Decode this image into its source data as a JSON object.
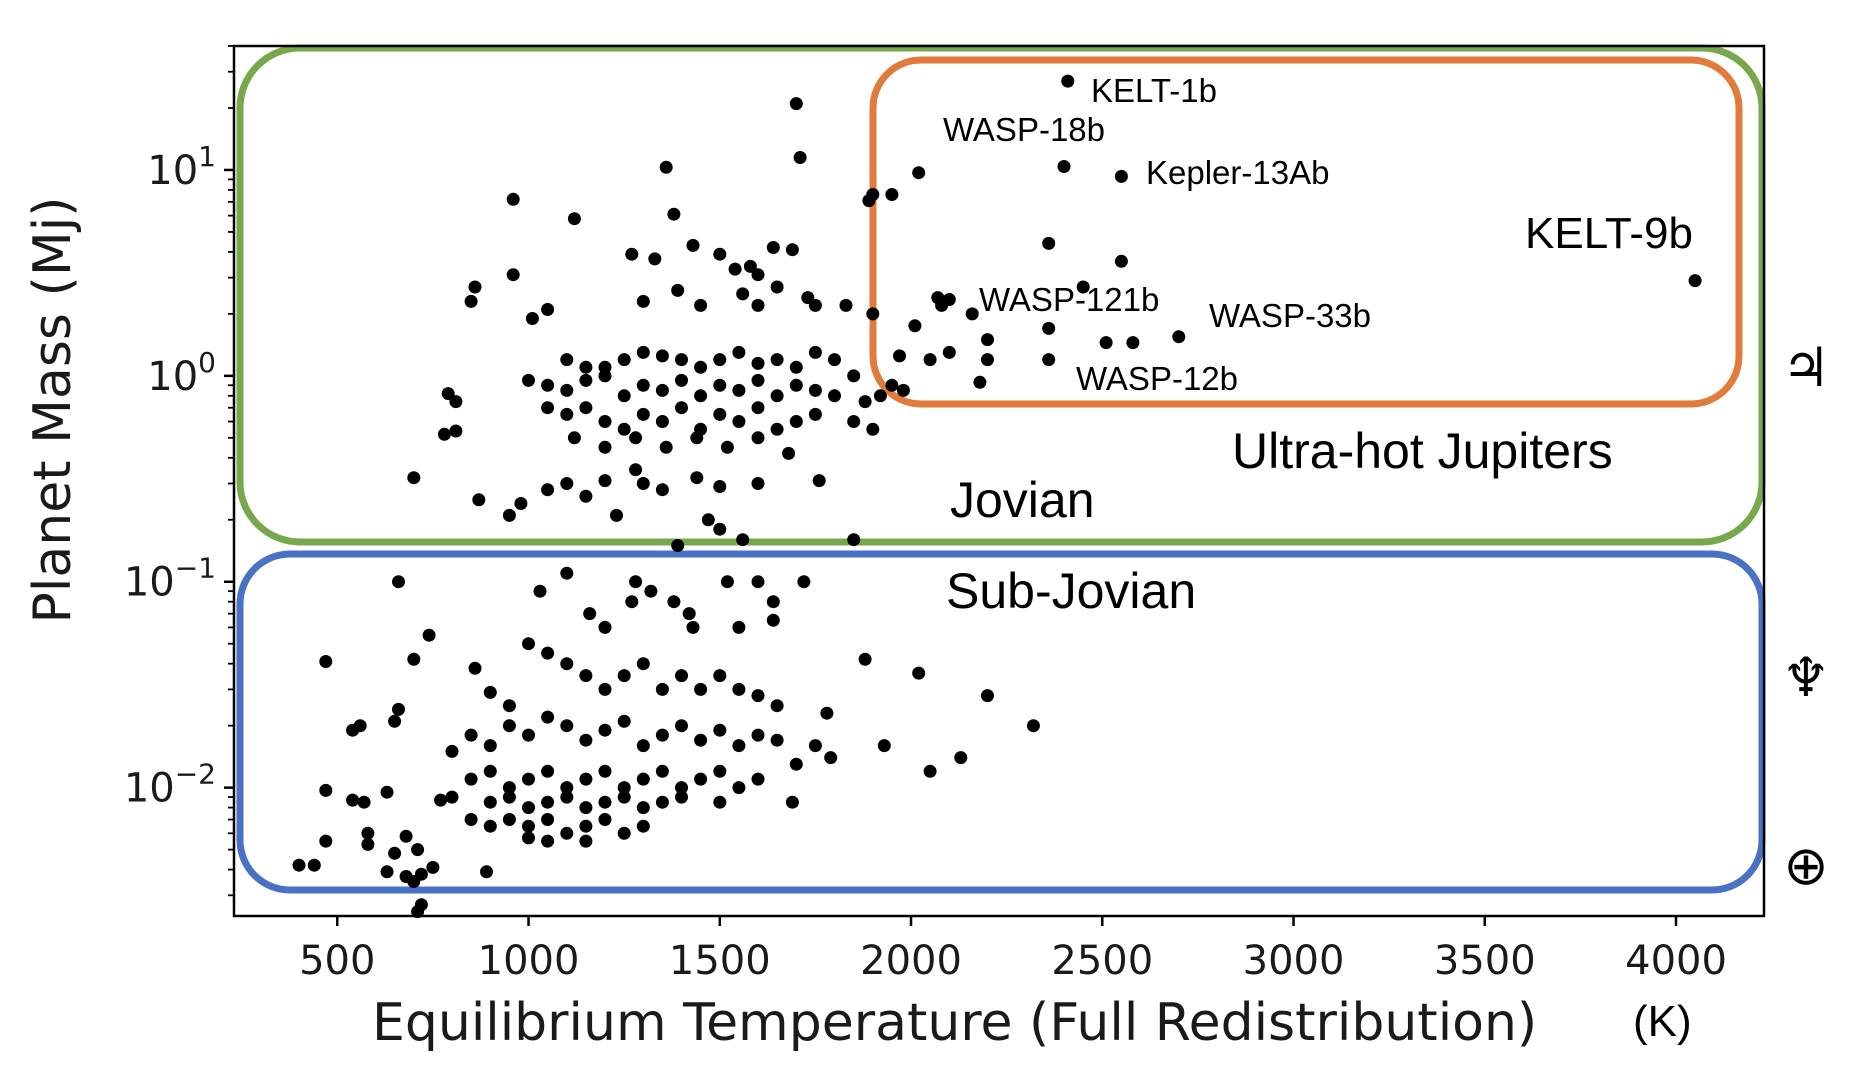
{
  "chart_data": {
    "type": "scatter",
    "xlabel": "Equilibrium Temperature (Full Redistribution)",
    "xlabel_unit": "(K)",
    "ylabel": "Planet Mass (Mj)",
    "y_scale": "log",
    "xlim": [
      230,
      4230
    ],
    "ylim": [
      0.00238,
      40
    ],
    "x_ticks": [
      500,
      1000,
      1500,
      2000,
      2500,
      3000,
      3500,
      4000
    ],
    "x_tick_labels": [
      "500",
      "1000",
      "1500",
      "2000",
      "2500",
      "3000",
      "3500",
      "4000"
    ],
    "y_ticks": [
      0.01,
      0.1,
      1,
      10
    ],
    "y_tick_base": "10",
    "y_tick_exponents": [
      "−2",
      "−1",
      "0",
      "1"
    ],
    "grid": false,
    "marker_color": "#000000",
    "regions": [
      {
        "label": "Jovian",
        "color": "#78a84c"
      },
      {
        "label": "Ultra-hot Jupiters",
        "color": "#e07b3c"
      },
      {
        "label": "Sub-Jovian",
        "color": "#4a72c4"
      }
    ],
    "annotations": [
      {
        "text": "KELT-1b",
        "x": 2410,
        "y": 27
      },
      {
        "text": "WASP-18b",
        "x": 2400,
        "y": 10.4
      },
      {
        "text": "Kepler-13Ab",
        "x": 2550,
        "y": 9.3
      },
      {
        "text": "KELT-9b",
        "x": 4050,
        "y": 2.9
      },
      {
        "text": "WASP-121b",
        "x": 2360,
        "y": 1.7
      },
      {
        "text": "WASP-33b",
        "x": 2700,
        "y": 1.55
      },
      {
        "text": "WASP-12b",
        "x": 2360,
        "y": 1.2
      }
    ],
    "right_axis_symbols": [
      {
        "name": "jupiter-symbol",
        "glyph": "♃",
        "y": 1.0
      },
      {
        "name": "neptune-symbol",
        "glyph": "♆",
        "y": 0.054
      },
      {
        "name": "earth-symbol",
        "glyph": "⊕",
        "y": 0.00315
      }
    ],
    "points": [
      [
        2410,
        27
      ],
      [
        1700,
        21
      ],
      [
        1710,
        11.5
      ],
      [
        2400,
        10.4
      ],
      [
        2550,
        9.3
      ],
      [
        2020,
        9.7
      ],
      [
        1360,
        10.3
      ],
      [
        1950,
        7.6
      ],
      [
        1890,
        7.1
      ],
      [
        960,
        7.2
      ],
      [
        1900,
        7.6
      ],
      [
        1120,
        5.8
      ],
      [
        1380,
        6.1
      ],
      [
        2360,
        4.4
      ],
      [
        2550,
        3.6
      ],
      [
        4050,
        2.9
      ],
      [
        1270,
        3.9
      ],
      [
        1330,
        3.7
      ],
      [
        1430,
        4.3
      ],
      [
        1500,
        3.9
      ],
      [
        1540,
        3.3
      ],
      [
        1580,
        3.4
      ],
      [
        1640,
        4.2
      ],
      [
        1690,
        4.1
      ],
      [
        1600,
        3.1
      ],
      [
        960,
        3.1
      ],
      [
        860,
        2.7
      ],
      [
        850,
        2.3
      ],
      [
        1010,
        1.9
      ],
      [
        1050,
        2.1
      ],
      [
        2450,
        2.7
      ],
      [
        1650,
        2.7
      ],
      [
        1300,
        2.3
      ],
      [
        1390,
        2.6
      ],
      [
        1450,
        2.2
      ],
      [
        1560,
        2.5
      ],
      [
        1600,
        2.2
      ],
      [
        1730,
        2.4
      ],
      [
        1750,
        2.2
      ],
      [
        1830,
        2.2
      ],
      [
        1900,
        2.0
      ],
      [
        2070,
        2.4
      ],
      [
        2100,
        2.35
      ],
      [
        2160,
        2.0
      ],
      [
        2080,
        2.2
      ],
      [
        2360,
        1.7
      ],
      [
        2700,
        1.55
      ],
      [
        2510,
        1.45
      ],
      [
        2580,
        1.45
      ],
      [
        2200,
        1.5
      ],
      [
        2360,
        1.2
      ],
      [
        2180,
        0.93
      ],
      [
        2200,
        1.2
      ],
      [
        2100,
        1.3
      ],
      [
        2050,
        1.2
      ],
      [
        2010,
        1.75
      ],
      [
        1970,
        1.25
      ],
      [
        1950,
        0.9
      ],
      [
        1980,
        0.85
      ],
      [
        1100,
        1.2
      ],
      [
        1150,
        1.1
      ],
      [
        1200,
        1.1
      ],
      [
        1250,
        1.2
      ],
      [
        1300,
        1.3
      ],
      [
        1350,
        1.25
      ],
      [
        1400,
        1.2
      ],
      [
        1450,
        1.1
      ],
      [
        1500,
        1.2
      ],
      [
        1550,
        1.3
      ],
      [
        1600,
        1.15
      ],
      [
        1650,
        1.2
      ],
      [
        1700,
        1.1
      ],
      [
        1750,
        1.3
      ],
      [
        1800,
        1.2
      ],
      [
        1850,
        1.0
      ],
      [
        1000,
        0.95
      ],
      [
        1050,
        0.9
      ],
      [
        1100,
        0.85
      ],
      [
        1150,
        0.95
      ],
      [
        1200,
        1.0
      ],
      [
        1250,
        0.8
      ],
      [
        1300,
        0.9
      ],
      [
        1350,
        0.85
      ],
      [
        1400,
        0.95
      ],
      [
        1450,
        0.8
      ],
      [
        1500,
        0.9
      ],
      [
        1550,
        0.85
      ],
      [
        1600,
        0.95
      ],
      [
        1650,
        0.8
      ],
      [
        1700,
        0.9
      ],
      [
        1750,
        0.85
      ],
      [
        1800,
        0.8
      ],
      [
        1880,
        0.75
      ],
      [
        1920,
        0.8
      ],
      [
        1050,
        0.7
      ],
      [
        1100,
        0.65
      ],
      [
        1150,
        0.7
      ],
      [
        1200,
        0.6
      ],
      [
        1250,
        0.55
      ],
      [
        1300,
        0.65
      ],
      [
        1350,
        0.6
      ],
      [
        1400,
        0.7
      ],
      [
        1450,
        0.55
      ],
      [
        1500,
        0.65
      ],
      [
        1550,
        0.6
      ],
      [
        1600,
        0.7
      ],
      [
        1650,
        0.55
      ],
      [
        1700,
        0.6
      ],
      [
        1750,
        0.65
      ],
      [
        1850,
        0.6
      ],
      [
        1900,
        0.55
      ],
      [
        1120,
        0.5
      ],
      [
        1200,
        0.45
      ],
      [
        1280,
        0.5
      ],
      [
        1360,
        0.45
      ],
      [
        1440,
        0.5
      ],
      [
        1520,
        0.45
      ],
      [
        1600,
        0.5
      ],
      [
        1680,
        0.42
      ],
      [
        790,
        0.82
      ],
      [
        810,
        0.75
      ],
      [
        780,
        0.52
      ],
      [
        810,
        0.54
      ],
      [
        700,
        0.32
      ],
      [
        870,
        0.25
      ],
      [
        950,
        0.21
      ],
      [
        980,
        0.24
      ],
      [
        1050,
        0.28
      ],
      [
        1100,
        0.3
      ],
      [
        1150,
        0.26
      ],
      [
        1200,
        0.31
      ],
      [
        1280,
        0.35
      ],
      [
        1300,
        0.3
      ],
      [
        1350,
        0.28
      ],
      [
        1440,
        0.32
      ],
      [
        1500,
        0.29
      ],
      [
        1600,
        0.3
      ],
      [
        1760,
        0.31
      ],
      [
        1230,
        0.21
      ],
      [
        1470,
        0.2
      ],
      [
        1500,
        0.18
      ],
      [
        1560,
        0.16
      ],
      [
        1850,
        0.16
      ],
      [
        1390,
        0.15
      ],
      [
        660,
        0.1
      ],
      [
        1030,
        0.09
      ],
      [
        1100,
        0.11
      ],
      [
        1280,
        0.1
      ],
      [
        1320,
        0.09
      ],
      [
        1380,
        0.08
      ],
      [
        1520,
        0.1
      ],
      [
        1600,
        0.1
      ],
      [
        1640,
        0.08
      ],
      [
        1720,
        0.1
      ],
      [
        1160,
        0.07
      ],
      [
        1200,
        0.06
      ],
      [
        1270,
        0.08
      ],
      [
        1420,
        0.07
      ],
      [
        1430,
        0.06
      ],
      [
        1550,
        0.06
      ],
      [
        1640,
        0.065
      ],
      [
        470,
        0.041
      ],
      [
        700,
        0.042
      ],
      [
        740,
        0.055
      ],
      [
        660,
        0.024
      ],
      [
        540,
        0.019
      ],
      [
        560,
        0.02
      ],
      [
        650,
        0.021
      ],
      [
        860,
        0.038
      ],
      [
        900,
        0.029
      ],
      [
        950,
        0.025
      ],
      [
        1000,
        0.05
      ],
      [
        1050,
        0.045
      ],
      [
        1100,
        0.04
      ],
      [
        1150,
        0.035
      ],
      [
        1200,
        0.03
      ],
      [
        1250,
        0.035
      ],
      [
        1300,
        0.04
      ],
      [
        1350,
        0.03
      ],
      [
        1400,
        0.035
      ],
      [
        1450,
        0.03
      ],
      [
        1500,
        0.035
      ],
      [
        1550,
        0.03
      ],
      [
        1600,
        0.028
      ],
      [
        1650,
        0.025
      ],
      [
        1880,
        0.042
      ],
      [
        2020,
        0.036
      ],
      [
        2200,
        0.028
      ],
      [
        2320,
        0.02
      ],
      [
        1780,
        0.023
      ],
      [
        800,
        0.015
      ],
      [
        850,
        0.018
      ],
      [
        900,
        0.016
      ],
      [
        950,
        0.02
      ],
      [
        1000,
        0.018
      ],
      [
        1050,
        0.022
      ],
      [
        1100,
        0.02
      ],
      [
        1150,
        0.017
      ],
      [
        1200,
        0.019
      ],
      [
        1250,
        0.021
      ],
      [
        1300,
        0.016
      ],
      [
        1350,
        0.018
      ],
      [
        1400,
        0.02
      ],
      [
        1450,
        0.017
      ],
      [
        1500,
        0.019
      ],
      [
        1550,
        0.016
      ],
      [
        1600,
        0.018
      ],
      [
        1650,
        0.017
      ],
      [
        1750,
        0.016
      ],
      [
        1930,
        0.016
      ],
      [
        850,
        0.011
      ],
      [
        900,
        0.012
      ],
      [
        950,
        0.01
      ],
      [
        1000,
        0.011
      ],
      [
        1050,
        0.012
      ],
      [
        1100,
        0.01
      ],
      [
        1150,
        0.011
      ],
      [
        1200,
        0.012
      ],
      [
        1250,
        0.01
      ],
      [
        1300,
        0.011
      ],
      [
        1350,
        0.012
      ],
      [
        1400,
        0.01
      ],
      [
        1450,
        0.011
      ],
      [
        1500,
        0.012
      ],
      [
        1550,
        0.01
      ],
      [
        1600,
        0.011
      ],
      [
        1700,
        0.013
      ],
      [
        1790,
        0.014
      ],
      [
        2050,
        0.012
      ],
      [
        2130,
        0.014
      ],
      [
        900,
        0.0085
      ],
      [
        950,
        0.009
      ],
      [
        1000,
        0.008
      ],
      [
        1050,
        0.0085
      ],
      [
        1100,
        0.009
      ],
      [
        1150,
        0.008
      ],
      [
        1200,
        0.0085
      ],
      [
        1250,
        0.009
      ],
      [
        1300,
        0.008
      ],
      [
        1350,
        0.0085
      ],
      [
        1400,
        0.009
      ],
      [
        1500,
        0.0085
      ],
      [
        1690,
        0.0085
      ],
      [
        800,
        0.009
      ],
      [
        770,
        0.0087
      ],
      [
        850,
        0.007
      ],
      [
        900,
        0.0065
      ],
      [
        950,
        0.007
      ],
      [
        1000,
        0.0065
      ],
      [
        1050,
        0.007
      ],
      [
        1100,
        0.006
      ],
      [
        1150,
        0.0065
      ],
      [
        1200,
        0.007
      ],
      [
        1250,
        0.006
      ],
      [
        1300,
        0.0065
      ],
      [
        1000,
        0.0057
      ],
      [
        1050,
        0.0055
      ],
      [
        1150,
        0.0055
      ],
      [
        470,
        0.0097
      ],
      [
        540,
        0.0087
      ],
      [
        570,
        0.0085
      ],
      [
        630,
        0.0095
      ],
      [
        580,
        0.006
      ],
      [
        580,
        0.0053
      ],
      [
        470,
        0.0055
      ],
      [
        680,
        0.0058
      ],
      [
        710,
        0.005
      ],
      [
        650,
        0.0048
      ],
      [
        630,
        0.0039
      ],
      [
        400,
        0.0042
      ],
      [
        440,
        0.0042
      ],
      [
        680,
        0.0037
      ],
      [
        700,
        0.0035
      ],
      [
        720,
        0.0038
      ],
      [
        750,
        0.0041
      ],
      [
        890,
        0.0039
      ],
      [
        720,
        0.0027
      ],
      [
        710,
        0.0025
      ]
    ]
  }
}
